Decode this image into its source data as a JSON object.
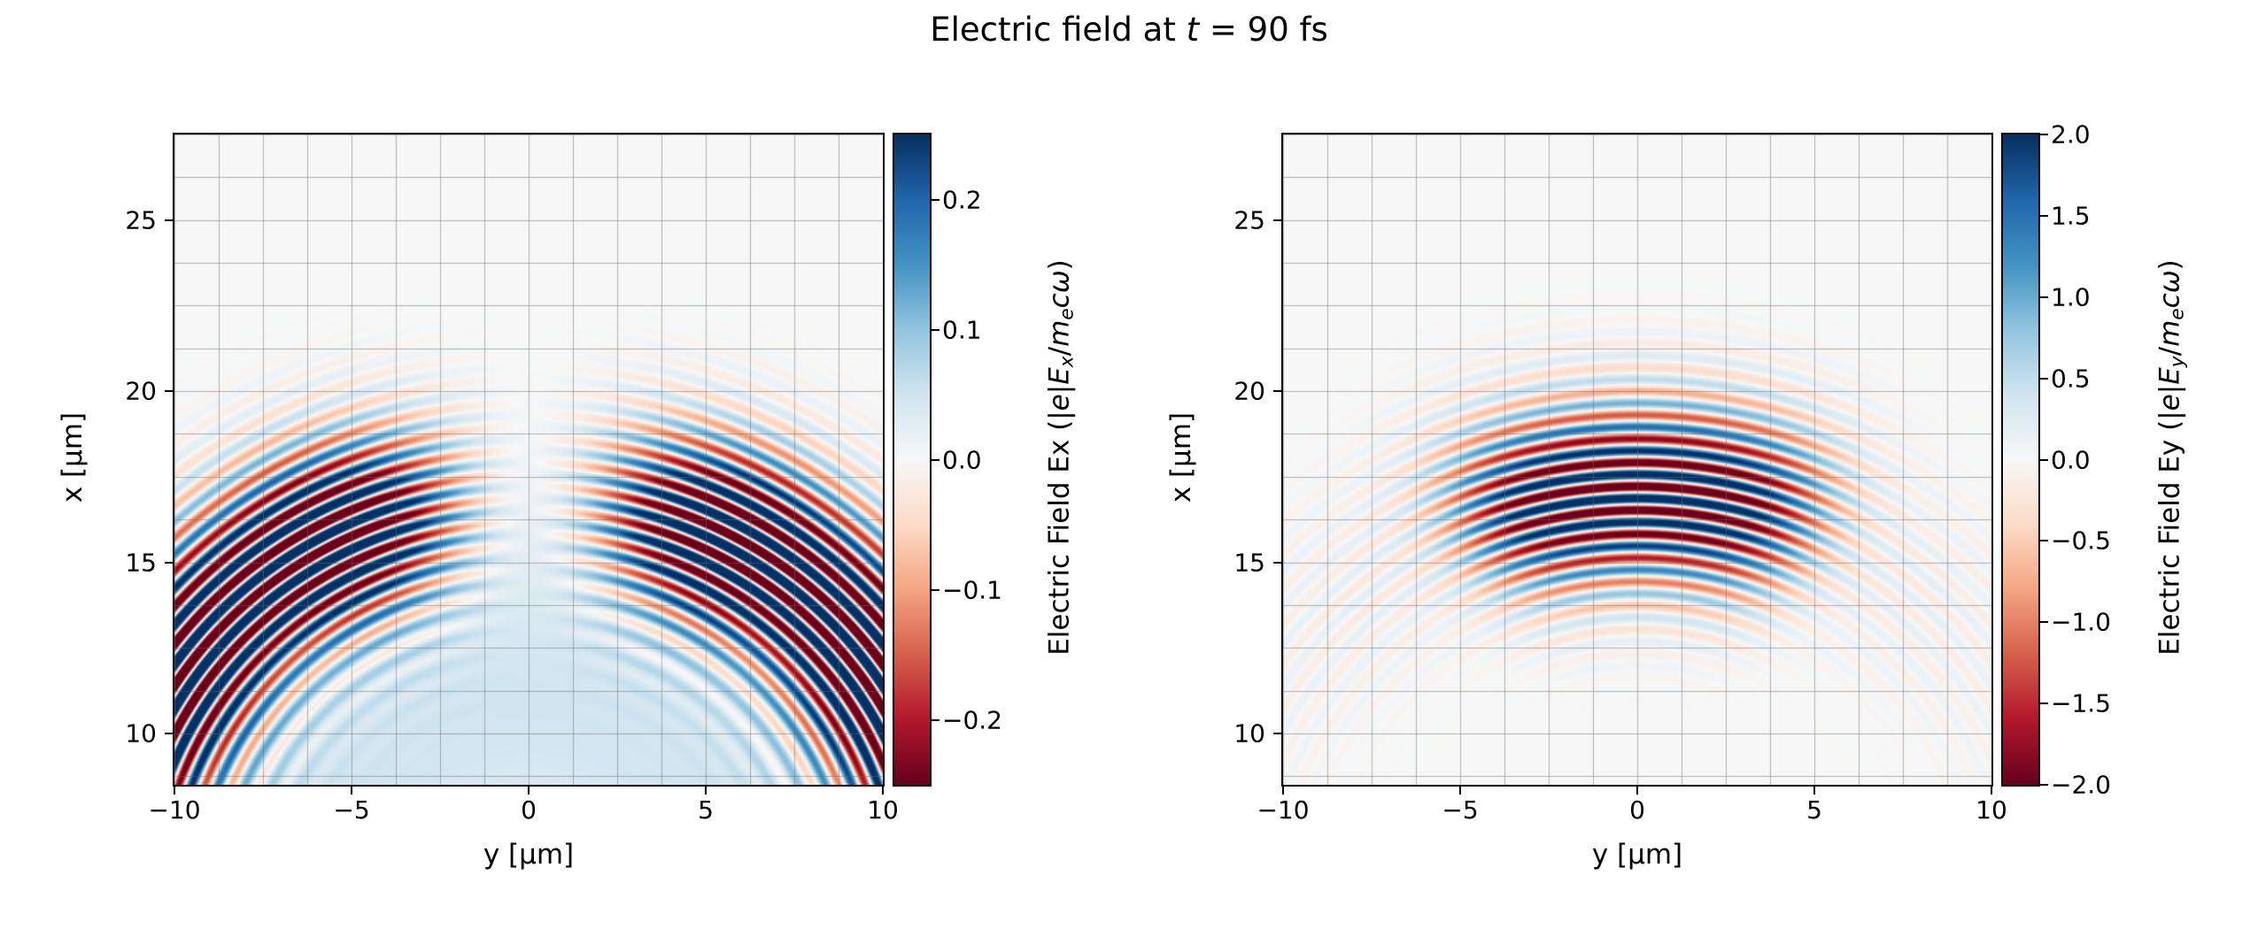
{
  "figure": {
    "title_parts": [
      {
        "t": "Electric field at "
      },
      {
        "t": "t",
        "style": "italic"
      },
      {
        "t": " = 90 fs"
      }
    ],
    "background": "#ffffff"
  },
  "colormap": {
    "name": "RdBu",
    "stops": [
      {
        "p": 0.0,
        "c": [
          103,
          0,
          31
        ]
      },
      {
        "p": 0.1,
        "c": [
          178,
          24,
          43
        ]
      },
      {
        "p": 0.2,
        "c": [
          214,
          96,
          77
        ]
      },
      {
        "p": 0.3,
        "c": [
          244,
          165,
          130
        ]
      },
      {
        "p": 0.4,
        "c": [
          253,
          219,
          199
        ]
      },
      {
        "p": 0.5,
        "c": [
          247,
          247,
          247
        ]
      },
      {
        "p": 0.6,
        "c": [
          209,
          229,
          240
        ]
      },
      {
        "p": 0.7,
        "c": [
          146,
          197,
          222
        ]
      },
      {
        "p": 0.8,
        "c": [
          67,
          147,
          195
        ]
      },
      {
        "p": 0.9,
        "c": [
          33,
          102,
          172
        ]
      },
      {
        "p": 1.0,
        "c": [
          5,
          48,
          97
        ]
      }
    ]
  },
  "grid": {
    "spacing": 1.25,
    "color": "rgba(105,105,105,0.5)"
  },
  "chart_data": [
    {
      "type": "heatmap",
      "id": "Ex",
      "xlabel": "y [μm]",
      "ylabel": "x [μm]",
      "xlim": [
        -10,
        10
      ],
      "ylim": [
        8.5,
        27.5
      ],
      "xticks": {
        "values": [
          -10,
          -5,
          0,
          5,
          10
        ],
        "labels": [
          "−10",
          "−5",
          "0",
          "5",
          "10"
        ]
      },
      "yticks": {
        "values": [
          10,
          15,
          20,
          25
        ],
        "labels": [
          "10",
          "15",
          "20",
          "25"
        ]
      },
      "colorbar": {
        "vmin": -0.25,
        "vmax": 0.25,
        "ticks": {
          "values": [
            0.2,
            0.1,
            0.0,
            -0.1,
            -0.2
          ],
          "labels": [
            "0.2",
            "0.1",
            "0.0",
            "−0.1",
            "−0.2"
          ]
        },
        "label_parts": [
          {
            "t": "Electric Field Ex (|"
          },
          {
            "t": "e",
            "style": "italic"
          },
          {
            "t": "|"
          },
          {
            "t": "E",
            "style": "italic"
          },
          {
            "t": "x",
            "style": "italic-sub"
          },
          {
            "t": "/"
          },
          {
            "t": "m",
            "style": "italic"
          },
          {
            "t": "e",
            "style": "italic-sub"
          },
          {
            "t": "c",
            "style": "italic"
          },
          {
            "t": "ω",
            "style": "italic"
          },
          {
            "t": ")"
          }
        ]
      },
      "field_model": {
        "type": "spherical-pulse",
        "source": {
          "y": 0,
          "x": 5.0
        },
        "wavenumber": 9.0,
        "phase": 0,
        "r0": 12.0,
        "sigma_r": 2.6,
        "amplitude": 0.45,
        "angular": {
          "symmetry": "odd",
          "smooth": 0.15,
          "lobes": [
            {
              "amp": 0.85,
              "center": 0.45,
              "width": 0.3
            },
            {
              "amp": 1.0,
              "center": 1.05,
              "width": 0.4
            }
          ]
        },
        "inner_glow": {
          "amp": 0.05,
          "r_center": 6.0,
          "r_width": 5.0
        }
      }
    },
    {
      "type": "heatmap",
      "id": "Ey",
      "xlabel": "y [μm]",
      "ylabel": "x [μm]",
      "xlim": [
        -10,
        10
      ],
      "ylim": [
        8.5,
        27.5
      ],
      "xticks": {
        "values": [
          -10,
          -5,
          0,
          5,
          10
        ],
        "labels": [
          "−10",
          "−5",
          "0",
          "5",
          "10"
        ]
      },
      "yticks": {
        "values": [
          10,
          15,
          20,
          25
        ],
        "labels": [
          "10",
          "15",
          "20",
          "25"
        ]
      },
      "colorbar": {
        "vmin": -2.0,
        "vmax": 2.0,
        "ticks": {
          "values": [
            2.0,
            1.5,
            1.0,
            0.5,
            0.0,
            -0.5,
            -1.0,
            -1.5,
            -2.0
          ],
          "labels": [
            "2.0",
            "1.5",
            "1.0",
            "0.5",
            "0.0",
            "−0.5",
            "−1.0",
            "−1.5",
            "−2.0"
          ]
        },
        "label_parts": [
          {
            "t": "Electric Field Ey (|"
          },
          {
            "t": "e",
            "style": "italic"
          },
          {
            "t": "|"
          },
          {
            "t": "E",
            "style": "italic"
          },
          {
            "t": "y",
            "style": "italic-sub"
          },
          {
            "t": "/"
          },
          {
            "t": "m",
            "style": "italic"
          },
          {
            "t": "e",
            "style": "italic-sub"
          },
          {
            "t": "c",
            "style": "italic"
          },
          {
            "t": "ω",
            "style": "italic"
          },
          {
            "t": ")"
          }
        ]
      },
      "field_model": {
        "type": "spherical-pulse",
        "source": {
          "y": 0,
          "x": 5.0
        },
        "wavenumber": 9.0,
        "phase": 0,
        "r0": 12.0,
        "sigma_r": 2.6,
        "amplitude": 2.4,
        "angular": {
          "symmetry": "even",
          "width": 0.42,
          "exponent": 4,
          "tail": 0.13,
          "tail_width": 1.0
        }
      }
    }
  ]
}
